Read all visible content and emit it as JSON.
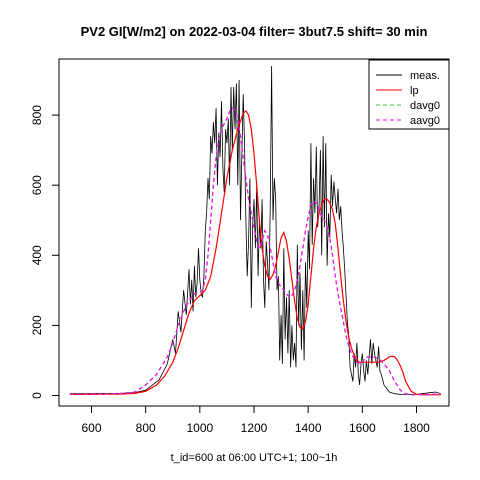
{
  "chart_data": {
    "type": "line",
    "title": "PV2 GI[W/m2] on 2022-03-04 filter= 3but7.5 shift= 30 min",
    "xlabel": "t_id=600 at 06:00 UTC+1; 100~1h",
    "ylabel": "",
    "xlim": [
      480,
      1920
    ],
    "ylim": [
      -30,
      960
    ],
    "x_ticks": [
      600,
      800,
      1000,
      1200,
      1400,
      1600,
      1800
    ],
    "x_tick_labels": [
      "600",
      "800",
      "1000",
      "1200",
      "1400",
      "1600",
      "1800"
    ],
    "y_ticks": [
      0,
      200,
      400,
      600,
      800
    ],
    "y_tick_labels": [
      "0",
      "200",
      "400",
      "600",
      "800"
    ],
    "grid": false,
    "legend_position": "top-right",
    "series": [
      {
        "name": "meas.",
        "color": "#000000",
        "dash": "solid",
        "x": [
          520,
          700,
          760,
          800,
          850,
          880,
          900,
          910,
          920,
          930,
          940,
          950,
          960,
          965,
          970,
          975,
          980,
          985,
          990,
          995,
          1000,
          1005,
          1010,
          1015,
          1020,
          1025,
          1030,
          1035,
          1040,
          1045,
          1050,
          1055,
          1060,
          1065,
          1070,
          1075,
          1080,
          1085,
          1090,
          1095,
          1100,
          1105,
          1110,
          1115,
          1120,
          1125,
          1130,
          1135,
          1140,
          1145,
          1150,
          1155,
          1160,
          1165,
          1170,
          1175,
          1180,
          1185,
          1190,
          1195,
          1200,
          1205,
          1210,
          1215,
          1220,
          1225,
          1230,
          1235,
          1240,
          1245,
          1250,
          1255,
          1260,
          1265,
          1270,
          1275,
          1280,
          1285,
          1290,
          1295,
          1300,
          1305,
          1310,
          1315,
          1320,
          1325,
          1330,
          1335,
          1340,
          1345,
          1350,
          1355,
          1360,
          1365,
          1370,
          1375,
          1380,
          1385,
          1390,
          1395,
          1400,
          1405,
          1410,
          1415,
          1420,
          1425,
          1430,
          1435,
          1440,
          1445,
          1450,
          1455,
          1460,
          1465,
          1470,
          1475,
          1480,
          1485,
          1490,
          1495,
          1500,
          1505,
          1510,
          1515,
          1520,
          1525,
          1530,
          1535,
          1540,
          1545,
          1550,
          1555,
          1560,
          1565,
          1570,
          1575,
          1580,
          1585,
          1590,
          1595,
          1600,
          1605,
          1610,
          1615,
          1620,
          1625,
          1630,
          1635,
          1640,
          1645,
          1650,
          1655,
          1660,
          1665,
          1670,
          1680,
          1700,
          1720,
          1740,
          1760,
          1780,
          1800,
          1820,
          1850,
          1870,
          1890
        ],
        "y": [
          5,
          6,
          8,
          15,
          45,
          90,
          160,
          120,
          240,
          180,
          300,
          230,
          360,
          260,
          330,
          240,
          370,
          280,
          320,
          420,
          330,
          290,
          280,
          340,
          470,
          520,
          620,
          560,
          740,
          690,
          780,
          720,
          820,
          600,
          750,
          680,
          840,
          650,
          580,
          760,
          720,
          790,
          600,
          880,
          700,
          880,
          760,
          890,
          600,
          900,
          500,
          680,
          860,
          720,
          500,
          340,
          440,
          620,
          250,
          480,
          560,
          420,
          600,
          340,
          500,
          420,
          560,
          330,
          250,
          440,
          380,
          300,
          550,
          940,
          500,
          620,
          560,
          300,
          340,
          100,
          230,
          90,
          420,
          160,
          280,
          120,
          300,
          80,
          200,
          100,
          150,
          80,
          430,
          200,
          350,
          130,
          300,
          100,
          380,
          250,
          470,
          360,
          720,
          430,
          620,
          520,
          710,
          480,
          530,
          700,
          400,
          740,
          480,
          720,
          370,
          520,
          450,
          630,
          540,
          610,
          560,
          520,
          590,
          500,
          540,
          470,
          420,
          360,
          280,
          210,
          170,
          80,
          60,
          40,
          120,
          80,
          150,
          60,
          30,
          90,
          120,
          70,
          40,
          100,
          60,
          110,
          160,
          90,
          150,
          120,
          100,
          80,
          140,
          70,
          60,
          30,
          10,
          5,
          3,
          3,
          3,
          3,
          5,
          8,
          10,
          5
        ]
      },
      {
        "name": "lp",
        "color": "#ff0000",
        "dash": "solid",
        "x": [
          520,
          700,
          760,
          800,
          840,
          870,
          900,
          920,
          940,
          960,
          980,
          1000,
          1020,
          1040,
          1060,
          1080,
          1100,
          1120,
          1140,
          1160,
          1170,
          1180,
          1190,
          1200,
          1210,
          1220,
          1230,
          1240,
          1250,
          1260,
          1270,
          1280,
          1290,
          1300,
          1310,
          1320,
          1330,
          1340,
          1350,
          1360,
          1370,
          1380,
          1390,
          1400,
          1410,
          1420,
          1430,
          1440,
          1450,
          1460,
          1470,
          1480,
          1490,
          1500,
          1510,
          1520,
          1530,
          1540,
          1550,
          1560,
          1570,
          1580,
          1590,
          1600,
          1620,
          1640,
          1660,
          1680,
          1700,
          1710,
          1720,
          1730,
          1740,
          1750,
          1760,
          1780,
          1800,
          1830,
          1860,
          1890
        ],
        "y": [
          3,
          4,
          6,
          12,
          30,
          55,
          95,
          135,
          185,
          235,
          270,
          285,
          300,
          340,
          420,
          520,
          620,
          700,
          760,
          805,
          812,
          800,
          760,
          690,
          600,
          500,
          420,
          370,
          340,
          332,
          345,
          370,
          410,
          450,
          465,
          440,
          390,
          330,
          270,
          220,
          195,
          190,
          210,
          260,
          340,
          420,
          480,
          520,
          545,
          560,
          560,
          550,
          530,
          490,
          420,
          340,
          270,
          210,
          165,
          135,
          115,
          100,
          95,
          95,
          95,
          95,
          95,
          100,
          110,
          112,
          110,
          100,
          85,
          65,
          40,
          12,
          3,
          2,
          2,
          2
        ]
      },
      {
        "name": "davg0",
        "color": "#33cc33",
        "dash": "4,3",
        "x": [
          520,
          700,
          760,
          800,
          840,
          880,
          900,
          920,
          940,
          960,
          980,
          1000,
          1010,
          1020,
          1030,
          1040,
          1050,
          1060,
          1070,
          1080,
          1090,
          1100,
          1110,
          1120,
          1130,
          1140,
          1150,
          1160,
          1170,
          1180,
          1190,
          1200,
          1210,
          1220,
          1230,
          1240,
          1250,
          1260,
          1270,
          1280,
          1290,
          1300,
          1310,
          1320,
          1330,
          1340,
          1350,
          1360,
          1370,
          1380,
          1390,
          1400,
          1410,
          1420,
          1430,
          1440,
          1450,
          1460,
          1470,
          1480,
          1490,
          1500,
          1510,
          1520,
          1530,
          1540,
          1550,
          1560,
          1570,
          1580,
          1590,
          1600,
          1610,
          1620,
          1640,
          1660,
          1680,
          1700,
          1720,
          1740,
          1760,
          1780,
          1800,
          1820,
          1850,
          1870,
          1890
        ],
        "y": [
          4,
          5,
          10,
          30,
          60,
          110,
          150,
          200,
          240,
          270,
          290,
          295,
          300,
          330,
          400,
          500,
          600,
          680,
          730,
          760,
          775,
          790,
          810,
          820,
          815,
          790,
          740,
          680,
          620,
          560,
          520,
          480,
          440,
          420,
          440,
          470,
          460,
          420,
          380,
          340,
          320,
          310,
          300,
          290,
          280,
          285,
          300,
          330,
          370,
          420,
          470,
          510,
          540,
          555,
          550,
          530,
          510,
          500,
          480,
          450,
          400,
          340,
          290,
          250,
          210,
          170,
          140,
          120,
          105,
          95,
          90,
          95,
          105,
          110,
          110,
          105,
          90,
          70,
          40,
          15,
          5,
          2,
          2,
          2,
          3,
          4,
          5
        ]
      },
      {
        "name": "aavg0",
        "color": "#ff00ff",
        "dash": "4,3",
        "x": [
          520,
          700,
          760,
          800,
          840,
          880,
          900,
          920,
          940,
          960,
          980,
          1000,
          1010,
          1020,
          1030,
          1040,
          1050,
          1060,
          1070,
          1080,
          1090,
          1100,
          1110,
          1120,
          1130,
          1140,
          1150,
          1160,
          1170,
          1180,
          1190,
          1200,
          1210,
          1220,
          1230,
          1240,
          1250,
          1260,
          1270,
          1280,
          1290,
          1300,
          1310,
          1320,
          1330,
          1340,
          1350,
          1360,
          1370,
          1380,
          1390,
          1400,
          1410,
          1420,
          1430,
          1440,
          1450,
          1460,
          1470,
          1480,
          1490,
          1500,
          1510,
          1520,
          1530,
          1540,
          1550,
          1560,
          1570,
          1580,
          1590,
          1600,
          1610,
          1620,
          1640,
          1660,
          1680,
          1700,
          1720,
          1740,
          1760,
          1780,
          1800,
          1820,
          1850,
          1870,
          1890
        ],
        "y": [
          4,
          5,
          10,
          30,
          60,
          110,
          150,
          200,
          240,
          270,
          290,
          295,
          300,
          330,
          400,
          500,
          600,
          680,
          730,
          760,
          775,
          790,
          810,
          820,
          815,
          790,
          740,
          680,
          620,
          560,
          520,
          480,
          440,
          420,
          440,
          470,
          460,
          420,
          380,
          340,
          320,
          310,
          300,
          290,
          280,
          285,
          300,
          330,
          370,
          420,
          470,
          510,
          540,
          555,
          550,
          530,
          510,
          500,
          480,
          450,
          400,
          340,
          290,
          250,
          210,
          170,
          140,
          120,
          105,
          95,
          90,
          95,
          105,
          110,
          110,
          105,
          90,
          70,
          40,
          15,
          5,
          2,
          2,
          2,
          3,
          4,
          5
        ]
      }
    ]
  }
}
